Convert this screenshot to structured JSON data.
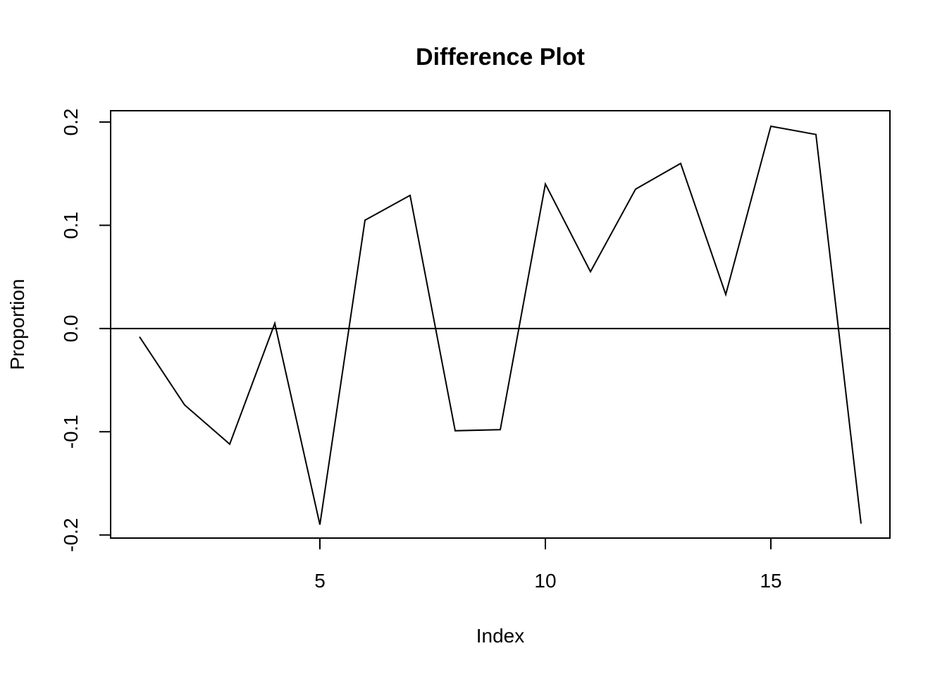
{
  "chart_data": {
    "type": "line",
    "title": "Difference Plot",
    "xlabel": "Index",
    "ylabel": "Proportion",
    "xlim": [
      0.36,
      17.64
    ],
    "ylim": [
      -0.203,
      0.211
    ],
    "x_ticks": [
      5,
      10,
      15
    ],
    "x_tick_labels": [
      "5",
      "10",
      "15"
    ],
    "y_ticks": [
      -0.2,
      -0.1,
      0.0,
      0.1,
      0.2
    ],
    "y_tick_labels": [
      "-0.2",
      "-0.1",
      "0.0",
      "0.1",
      "0.2"
    ],
    "reference_line": {
      "y": 0.0
    },
    "grid": false,
    "series": [
      {
        "x": [
          1,
          2,
          3,
          4,
          5,
          6,
          7,
          8,
          9,
          10,
          11,
          12,
          13,
          14,
          15,
          16,
          17
        ],
        "values": [
          -0.008,
          -0.074,
          -0.112,
          0.005,
          -0.19,
          0.105,
          0.129,
          -0.099,
          -0.098,
          0.14,
          0.055,
          0.135,
          0.16,
          0.033,
          0.196,
          0.188,
          -0.189
        ]
      }
    ],
    "line_color": "#000000"
  }
}
